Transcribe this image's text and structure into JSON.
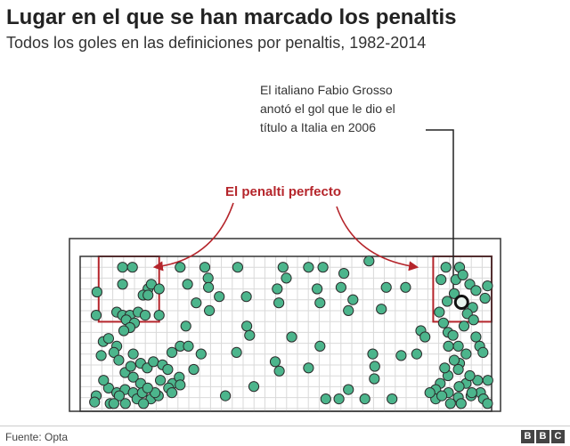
{
  "chart_data": {
    "type": "scatter",
    "title": "Lugar en el que se han marcado los penaltis",
    "subtitle": "Todos los goles en las definiciones por penaltis, 1982-2014",
    "xlabel": "",
    "ylabel": "",
    "xlim": [
      0,
      100
    ],
    "ylim": [
      0,
      100
    ],
    "grid": true,
    "colors": {
      "dot": "#4cb58c",
      "dot_stroke": "#2c2c2c",
      "highlight": "#e8f4ee",
      "annotation": "#b5252b",
      "frame": "#333333",
      "grid": "#d9d9d9"
    },
    "zones": [
      {
        "name": "zona-izquierda",
        "x": [
          4.5,
          19.2
        ],
        "y": [
          57.8,
          100
        ]
      },
      {
        "name": "zona-derecha",
        "x": [
          85.8,
          100
        ],
        "y": [
          57.8,
          100
        ]
      }
    ],
    "annotations": {
      "perfect": "El penalti perfecto",
      "grosso": "El italiano Fabio Grosso anotó el gol que le dio el título a Italia en 2006"
    },
    "highlight_point": {
      "x": 92.7,
      "y": 70.4
    },
    "points": [
      [
        4.1,
        77
      ],
      [
        10.3,
        93
      ],
      [
        12.7,
        93
      ],
      [
        10.3,
        82
      ],
      [
        16.5,
        79
      ],
      [
        17.3,
        82
      ],
      [
        19.2,
        79
      ],
      [
        15.3,
        75
      ],
      [
        16.5,
        75
      ],
      [
        3.9,
        62
      ],
      [
        8.9,
        64
      ],
      [
        10.3,
        62
      ],
      [
        12.1,
        62
      ],
      [
        14.1,
        64
      ],
      [
        15.8,
        62
      ],
      [
        19.2,
        62
      ],
      [
        11.2,
        59
      ],
      [
        13.2,
        57
      ],
      [
        12.1,
        54
      ],
      [
        10.6,
        52
      ],
      [
        5.6,
        45
      ],
      [
        6.9,
        47
      ],
      [
        8.9,
        42
      ],
      [
        5.1,
        36
      ],
      [
        8.2,
        38
      ],
      [
        9.4,
        33
      ],
      [
        12.9,
        37
      ],
      [
        14.7,
        31
      ],
      [
        10.9,
        25
      ],
      [
        12.3,
        29
      ],
      [
        12.9,
        22
      ],
      [
        14.7,
        18
      ],
      [
        16.3,
        28
      ],
      [
        17.8,
        32
      ],
      [
        20,
        30
      ],
      [
        21.3,
        27
      ],
      [
        22.3,
        38
      ],
      [
        24.3,
        42
      ],
      [
        19.5,
        20
      ],
      [
        22.5,
        18
      ],
      [
        24.1,
        22
      ],
      [
        3.9,
        10
      ],
      [
        6.9,
        15
      ],
      [
        5.7,
        20
      ],
      [
        8.9,
        12
      ],
      [
        10.9,
        14
      ],
      [
        12.9,
        12
      ],
      [
        13.8,
        8
      ],
      [
        15.1,
        12
      ],
      [
        17.2,
        8
      ],
      [
        11,
        5
      ],
      [
        7.3,
        5
      ],
      [
        3.5,
        6
      ],
      [
        19,
        10
      ],
      [
        21.5,
        15
      ],
      [
        22.3,
        12
      ],
      [
        24.3,
        17
      ],
      [
        18.2,
        12
      ],
      [
        27.6,
        27
      ],
      [
        29.4,
        37
      ],
      [
        24.3,
        93
      ],
      [
        26.1,
        82
      ],
      [
        30.3,
        93
      ],
      [
        31.1,
        86
      ],
      [
        31.2,
        80
      ],
      [
        28.2,
        70
      ],
      [
        31.4,
        65
      ],
      [
        25.7,
        55
      ],
      [
        26.3,
        42
      ],
      [
        33.8,
        74
      ],
      [
        38.3,
        93
      ],
      [
        40.4,
        74
      ],
      [
        40.5,
        55
      ],
      [
        41.2,
        49
      ],
      [
        38,
        38
      ],
      [
        35.3,
        10
      ],
      [
        42.2,
        16
      ],
      [
        47.9,
        79
      ],
      [
        49.3,
        93
      ],
      [
        50.1,
        86
      ],
      [
        48.3,
        70
      ],
      [
        55.5,
        93
      ],
      [
        51.4,
        48
      ],
      [
        47.4,
        32
      ],
      [
        48.4,
        26
      ],
      [
        55.5,
        28
      ],
      [
        58.3,
        42
      ],
      [
        59,
        93
      ],
      [
        57.6,
        79
      ],
      [
        63.4,
        80
      ],
      [
        64.1,
        89
      ],
      [
        58.3,
        70
      ],
      [
        66.3,
        72
      ],
      [
        65.2,
        65
      ],
      [
        59.7,
        8
      ],
      [
        62.9,
        8
      ],
      [
        65.2,
        14
      ],
      [
        69.2,
        8
      ],
      [
        71.1,
        37
      ],
      [
        71.6,
        29
      ],
      [
        71.5,
        21
      ],
      [
        75.8,
        8
      ],
      [
        70.2,
        97
      ],
      [
        74.4,
        80
      ],
      [
        73.2,
        66
      ],
      [
        79.1,
        80
      ],
      [
        82.8,
        52
      ],
      [
        81.8,
        37
      ],
      [
        78,
        36
      ],
      [
        88.9,
        93
      ],
      [
        87.7,
        85
      ],
      [
        91.3,
        85
      ],
      [
        92.2,
        93
      ],
      [
        93,
        88
      ],
      [
        94.7,
        82
      ],
      [
        96.2,
        78
      ],
      [
        99,
        81
      ],
      [
        89.2,
        71
      ],
      [
        90.9,
        76
      ],
      [
        95.4,
        67
      ],
      [
        98.4,
        73
      ],
      [
        87.3,
        64
      ],
      [
        88.3,
        57
      ],
      [
        89.4,
        51
      ],
      [
        90.6,
        49
      ],
      [
        94.1,
        63
      ],
      [
        95.6,
        59
      ],
      [
        93.3,
        55
      ],
      [
        96.2,
        48
      ],
      [
        97.1,
        42
      ],
      [
        93.8,
        37
      ],
      [
        92.2,
        31
      ],
      [
        90.9,
        33
      ],
      [
        91.9,
        27
      ],
      [
        89.4,
        23
      ],
      [
        87.5,
        18
      ],
      [
        86.4,
        14
      ],
      [
        86.4,
        8
      ],
      [
        89.5,
        12
      ],
      [
        90,
        5
      ],
      [
        91.9,
        9
      ],
      [
        95,
        10
      ],
      [
        97.3,
        12
      ],
      [
        96.6,
        20
      ],
      [
        99.1,
        20
      ],
      [
        98,
        8
      ],
      [
        93.8,
        18
      ],
      [
        91.9,
        42
      ],
      [
        89.5,
        42
      ],
      [
        92.1,
        16
      ],
      [
        97.9,
        38
      ],
      [
        83.8,
        48
      ],
      [
        94.7,
        23
      ],
      [
        95.2,
        12
      ],
      [
        88.6,
        28
      ],
      [
        99,
        5
      ],
      [
        85,
        12
      ],
      [
        87.9,
        10
      ],
      [
        92.6,
        5
      ],
      [
        9.5,
        10
      ],
      [
        8.2,
        5
      ],
      [
        16.4,
        15
      ],
      [
        15.4,
        5
      ]
    ]
  },
  "footer": {
    "source": "Fuente: Opta",
    "logo": [
      "B",
      "B",
      "C"
    ]
  }
}
